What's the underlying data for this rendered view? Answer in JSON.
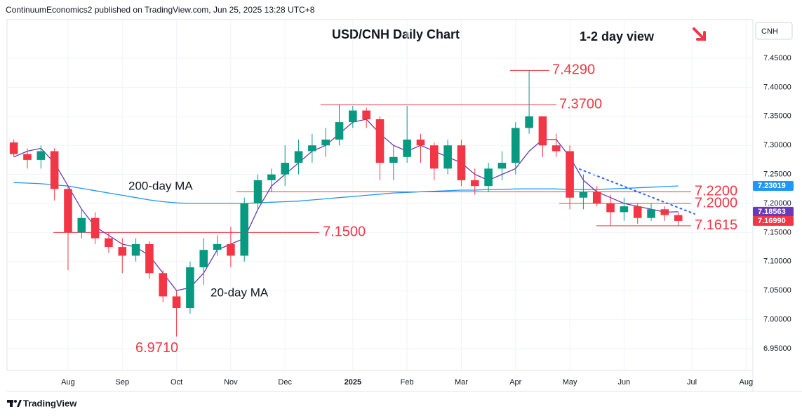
{
  "header": "ContinuumEconomics2 published on TradingView.com, Jun 25, 2025 13:28 UTC+8",
  "footer": "TradingView",
  "chart_data": {
    "type": "candlestick",
    "title": "USD/CNH Daily Chart",
    "subtitle": "1-2 day view",
    "currency": "CNH",
    "up_color": "#089981",
    "down_color": "#f23645",
    "categories": [
      null,
      null,
      null,
      null,
      "Aug",
      null,
      null,
      null,
      "Sep",
      null,
      null,
      null,
      "Oct",
      null,
      null,
      null,
      "Nov",
      null,
      null,
      null,
      "Dec",
      null,
      null,
      null,
      null,
      "2025",
      null,
      null,
      null,
      "Feb",
      null,
      null,
      null,
      "Mar",
      null,
      null,
      null,
      "Apr",
      null,
      null,
      null,
      "May",
      null,
      null,
      null,
      "Jun",
      null,
      null,
      null,
      null,
      "Jul",
      null,
      null,
      null,
      "Aug"
    ],
    "open": [
      7.305,
      7.285,
      7.275,
      7.29,
      7.225,
      7.15,
      7.175,
      7.14,
      7.125,
      7.11,
      7.13,
      7.08,
      7.04,
      7.02,
      7.09,
      7.12,
      7.13,
      7.11,
      7.2,
      7.24,
      7.25,
      7.27,
      7.29,
      7.3,
      7.31,
      7.34,
      7.36,
      7.345,
      7.27,
      7.28,
      7.31,
      7.3,
      7.26,
      7.3,
      7.24,
      7.23,
      7.26,
      7.27,
      7.33,
      7.35,
      7.3,
      7.29,
      7.21,
      7.22,
      7.2,
      7.185,
      7.195,
      7.175,
      7.19,
      7.18,
      null,
      null,
      null,
      null,
      null
    ],
    "high": [
      7.31,
      7.295,
      7.3,
      7.295,
      7.23,
      7.19,
      7.185,
      7.15,
      7.14,
      7.14,
      7.135,
      7.085,
      7.05,
      7.1,
      7.14,
      7.145,
      7.16,
      7.21,
      7.25,
      7.26,
      7.3,
      7.31,
      7.32,
      7.33,
      7.37,
      7.368,
      7.365,
      7.35,
      7.3,
      7.368,
      7.32,
      7.305,
      7.31,
      7.31,
      7.26,
      7.27,
      7.29,
      7.34,
      7.429,
      7.35,
      7.32,
      7.3,
      7.25,
      7.23,
      7.215,
      7.21,
      7.2,
      7.2,
      7.195,
      7.185,
      null,
      null,
      null,
      null,
      null
    ],
    "low": [
      7.28,
      7.26,
      7.26,
      7.205,
      7.085,
      7.14,
      7.13,
      7.115,
      7.08,
      7.1,
      7.07,
      7.03,
      6.971,
      7.01,
      7.06,
      7.11,
      7.09,
      7.1,
      7.19,
      7.22,
      7.23,
      7.25,
      7.27,
      7.28,
      7.3,
      7.33,
      7.33,
      7.24,
      7.24,
      7.27,
      7.27,
      7.24,
      7.25,
      7.23,
      7.215,
      7.22,
      7.24,
      7.25,
      7.32,
      7.28,
      7.28,
      7.19,
      7.19,
      7.195,
      7.1615,
      7.17,
      7.165,
      7.17,
      7.17,
      7.162,
      null,
      null,
      null,
      null,
      null
    ],
    "close": [
      7.285,
      7.275,
      7.29,
      7.225,
      7.15,
      7.175,
      7.14,
      7.125,
      7.11,
      7.13,
      7.08,
      7.04,
      7.02,
      7.09,
      7.12,
      7.13,
      7.11,
      7.2,
      7.24,
      7.25,
      7.27,
      7.29,
      7.3,
      7.31,
      7.34,
      7.36,
      7.345,
      7.27,
      7.28,
      7.31,
      7.3,
      7.26,
      7.3,
      7.24,
      7.23,
      7.26,
      7.27,
      7.33,
      7.35,
      7.3,
      7.29,
      7.21,
      7.22,
      7.2,
      7.185,
      7.195,
      7.175,
      7.19,
      7.18,
      7.1699,
      null,
      null,
      null,
      null,
      null
    ],
    "ma_lines": [
      {
        "label": "200-day MA",
        "color": "#2196f3",
        "values": [
          7.236,
          7.235,
          7.234,
          7.232,
          7.23,
          7.226,
          7.222,
          7.218,
          7.214,
          7.21,
          7.206,
          7.203,
          7.201,
          7.2,
          7.2,
          7.2,
          7.2,
          7.2,
          7.201,
          7.202,
          7.203,
          7.204,
          7.206,
          7.208,
          7.21,
          7.212,
          7.214,
          7.216,
          7.218,
          7.219,
          7.22,
          7.221,
          7.222,
          7.223,
          7.223,
          7.224,
          7.224,
          7.225,
          7.225,
          7.225,
          7.225,
          7.224,
          7.224,
          7.224,
          7.225,
          7.226,
          7.227,
          7.228,
          7.229,
          7.2302,
          null,
          null,
          null,
          null,
          null
        ]
      },
      {
        "label": "20-day MA",
        "color": "#673ab7",
        "values": [
          7.28,
          7.29,
          7.295,
          7.27,
          7.23,
          7.19,
          7.16,
          7.145,
          7.13,
          7.125,
          7.11,
          7.08,
          7.05,
          7.055,
          7.08,
          7.12,
          7.13,
          7.14,
          7.19,
          7.23,
          7.25,
          7.27,
          7.29,
          7.3,
          7.32,
          7.34,
          7.345,
          7.32,
          7.3,
          7.29,
          7.3,
          7.29,
          7.28,
          7.27,
          7.25,
          7.24,
          7.25,
          7.26,
          7.29,
          7.31,
          7.31,
          7.28,
          7.24,
          7.22,
          7.21,
          7.2,
          7.195,
          7.19,
          7.185,
          7.1856,
          null,
          null,
          null,
          null,
          null
        ]
      }
    ],
    "levels": [
      {
        "value": 7.429,
        "label": "7.4290"
      },
      {
        "value": 7.37,
        "label": "7.3700"
      },
      {
        "value": 7.22,
        "label": "7.2200"
      },
      {
        "value": 7.2,
        "label": "7.2000"
      },
      {
        "value": 7.1615,
        "label": "7.1615"
      },
      {
        "value": 7.15,
        "label": "7.1500"
      },
      {
        "value": 6.971,
        "label": "6.9710"
      }
    ],
    "price_tags": [
      {
        "value": 7.23019,
        "label": "7.23019",
        "color": "#2196f3"
      },
      {
        "value": 7.18563,
        "label": "7.18563",
        "color": "#673ab7"
      },
      {
        "value": 7.1699,
        "label": "7.16990",
        "color": "#f23645"
      }
    ],
    "ylim": [
      6.9125,
      7.5165
    ],
    "yticks": [
      {
        "value": 6.95,
        "label": "6.95000"
      },
      {
        "value": 7.0,
        "label": "7.00000"
      },
      {
        "value": 7.05,
        "label": "7.05000"
      },
      {
        "value": 7.1,
        "label": "7.10000"
      },
      {
        "value": 7.15,
        "label": "7.15000"
      },
      {
        "value": 7.2,
        "label": "7.20000"
      },
      {
        "value": 7.25,
        "label": "7.25000"
      },
      {
        "value": 7.3,
        "label": "7.30000"
      },
      {
        "value": 7.35,
        "label": "7.35000"
      },
      {
        "value": 7.4,
        "label": "7.40000"
      },
      {
        "value": 7.45,
        "label": "7.45000"
      }
    ],
    "grid": true
  }
}
